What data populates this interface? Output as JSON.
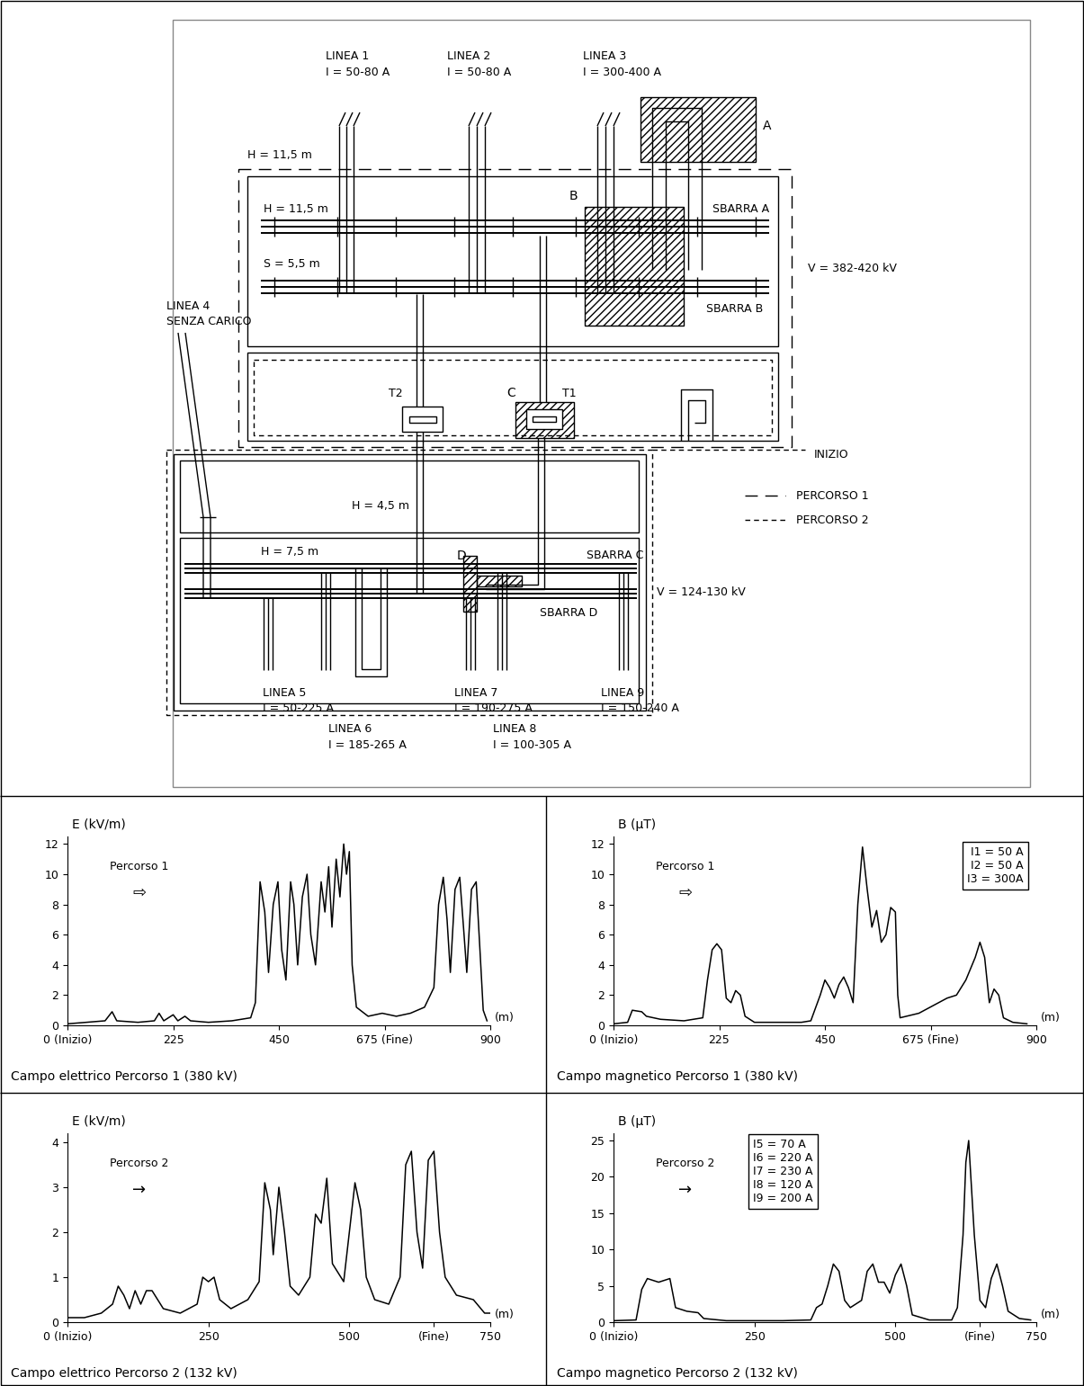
{
  "diagram": {
    "lines": [
      {
        "name": "LINEA 1",
        "current": "I = 50-80 A"
      },
      {
        "name": "LINEA 2",
        "current": "I = 50-80 A"
      },
      {
        "name": "LINEA 3",
        "current": "I = 300-400 A"
      },
      {
        "name": "LINEA 4",
        "current": "SENZA CARICO"
      },
      {
        "name": "LINEA 5",
        "current": "I = 50-225 A"
      },
      {
        "name": "LINEA 6",
        "current": "I = 185-265 A"
      },
      {
        "name": "LINEA 7",
        "current": "I = 190-275 A"
      },
      {
        "name": "LINEA 8",
        "current": "I = 100-305 A"
      },
      {
        "name": "LINEA 9",
        "current": "I = 150-240 A"
      }
    ],
    "heights": [
      "H = 11,5 m",
      "H = 11,5 m",
      "H = 4,5 m",
      "H = 7,5 m"
    ],
    "spacing": "S = 5,5 m",
    "busbars": [
      "SBARRA A",
      "SBARRA B",
      "SBARRA C",
      "SBARRA D"
    ],
    "voltages": [
      "V = 382-420 kV",
      "V = 124-130 kV"
    ],
    "areas": [
      "A",
      "B",
      "C",
      "D"
    ],
    "transformers": [
      "T2",
      "T1"
    ],
    "start": "INIZIO",
    "paths": [
      "PERCORSO 1",
      "PERCORSO 2"
    ]
  },
  "chart_data": [
    {
      "type": "line",
      "title": "Campo elettrico Percorso 1 (380 kV)",
      "y_label": "E (kV/m)",
      "x_label": "(m)",
      "annotations": [
        "Percorso 1",
        "⇨"
      ],
      "x": [
        0,
        40,
        80,
        95,
        105,
        150,
        185,
        195,
        205,
        225,
        235,
        250,
        262,
        300,
        350,
        390,
        400,
        410,
        420,
        428,
        438,
        448,
        456,
        465,
        475,
        482,
        490,
        500,
        510,
        518,
        528,
        540,
        548,
        556,
        563,
        572,
        580,
        588,
        594,
        600,
        606,
        615,
        640,
        670,
        700,
        730,
        760,
        780,
        790,
        800,
        808,
        815,
        825,
        835,
        843,
        850,
        860,
        870,
        878,
        885,
        893
      ],
      "values": [
        0.1,
        0.2,
        0.3,
        0.9,
        0.3,
        0.2,
        0.3,
        0.8,
        0.3,
        0.7,
        0.3,
        0.6,
        0.3,
        0.2,
        0.3,
        0.5,
        1.5,
        9.5,
        7.5,
        3.5,
        8,
        9.5,
        5,
        3,
        9.5,
        8,
        4,
        8.5,
        10,
        6,
        4,
        9.5,
        7.5,
        10.5,
        6.5,
        11,
        8.5,
        12,
        10,
        11.5,
        4,
        1.2,
        0.6,
        0.8,
        0.6,
        0.8,
        1.2,
        2.5,
        8,
        9.8,
        7,
        3.5,
        9,
        9.8,
        6.5,
        3.5,
        9,
        9.5,
        5,
        1,
        0.3
      ],
      "color": "#000000",
      "xlim": [
        0,
        900
      ],
      "ylim": [
        0,
        12.5
      ],
      "xticks": [
        {
          "value": 0,
          "label": "0 (Inizio)"
        },
        225,
        450,
        {
          "value": 675,
          "label": "675 (Fine)"
        },
        900
      ],
      "yticks": [
        0,
        2,
        4,
        6,
        8,
        10,
        12
      ]
    },
    {
      "type": "line",
      "title": "Campo magnetico Percorso 1 (380 kV)",
      "y_label": "B (µT)",
      "x_label": "(m)",
      "annotations": [
        "Percorso 1",
        "⇨"
      ],
      "currents": [
        "I1 = 50 A",
        "I2 = 50 A",
        "I3 = 300A"
      ],
      "x": [
        0,
        30,
        40,
        60,
        70,
        100,
        150,
        190,
        200,
        210,
        220,
        230,
        240,
        250,
        260,
        270,
        280,
        300,
        400,
        420,
        440,
        450,
        460,
        470,
        480,
        490,
        500,
        510,
        520,
        530,
        540,
        550,
        560,
        570,
        580,
        590,
        600,
        605,
        610,
        650,
        680,
        710,
        730,
        750,
        770,
        780,
        790,
        800,
        810,
        820,
        830,
        850,
        880
      ],
      "values": [
        0.1,
        0.2,
        1.0,
        0.9,
        0.6,
        0.4,
        0.3,
        0.5,
        3,
        5,
        5.4,
        5,
        1.8,
        1.5,
        2.3,
        2,
        0.6,
        0.2,
        0.2,
        0.3,
        2,
        3,
        2.5,
        1.8,
        2.7,
        3.2,
        2.5,
        1.5,
        8,
        11.8,
        9,
        6.5,
        7.6,
        5.5,
        6,
        7.8,
        7.5,
        2,
        0.5,
        0.8,
        1.3,
        1.8,
        2,
        3,
        4.5,
        5.5,
        4.5,
        1.5,
        2.4,
        2,
        0.5,
        0.2,
        0.1
      ],
      "color": "#000000",
      "xlim": [
        0,
        900
      ],
      "ylim": [
        0,
        12.5
      ],
      "xticks": [
        {
          "value": 0,
          "label": "0 (Inizio)"
        },
        225,
        450,
        {
          "value": 675,
          "label": "675 (Fine)"
        },
        900
      ],
      "yticks": [
        0,
        2,
        4,
        6,
        8,
        10,
        12
      ]
    },
    {
      "type": "line",
      "title": "Campo elettrico Percorso 2 (132 kV)",
      "y_label": "E (kV/m)",
      "x_label": "(m)",
      "annotations": [
        "Percorso 2",
        "→"
      ],
      "x": [
        0,
        30,
        60,
        80,
        90,
        100,
        110,
        120,
        130,
        140,
        150,
        160,
        170,
        200,
        230,
        240,
        250,
        260,
        270,
        290,
        320,
        340,
        350,
        360,
        365,
        375,
        385,
        395,
        410,
        430,
        440,
        450,
        460,
        470,
        490,
        510,
        520,
        530,
        545,
        570,
        590,
        600,
        610,
        620,
        630,
        640,
        650,
        660,
        670,
        690,
        720,
        740,
        750
      ],
      "values": [
        0.1,
        0.1,
        0.2,
        0.4,
        0.8,
        0.6,
        0.3,
        0.7,
        0.4,
        0.7,
        0.7,
        0.5,
        0.3,
        0.2,
        0.4,
        1.0,
        0.9,
        1.0,
        0.5,
        0.3,
        0.5,
        0.9,
        3.1,
        2.5,
        1.5,
        3.0,
        2.0,
        0.8,
        0.6,
        1.0,
        2.4,
        2.2,
        3.2,
        1.3,
        0.9,
        3.1,
        2.5,
        1.0,
        0.5,
        0.4,
        1.0,
        3.5,
        3.8,
        2.0,
        1.2,
        3.6,
        3.8,
        2.0,
        1.0,
        0.6,
        0.5,
        0.2,
        0.2
      ],
      "color": "#000000",
      "xlim": [
        0,
        750
      ],
      "ylim": [
        0,
        4.2
      ],
      "xticks": [
        {
          "value": 0,
          "label": "0 (Inizio)"
        },
        250,
        500,
        {
          "value": 650,
          "label": "(Fine)"
        },
        750
      ],
      "yticks": [
        0,
        1,
        2,
        3,
        4
      ]
    },
    {
      "type": "line",
      "title": "Campo magnetico Percorso 2 (132 kV)",
      "y_label": "B (µT)",
      "x_label": "(m)",
      "annotations": [
        "Percorso 2",
        "→"
      ],
      "currents": [
        "I5 = 70 A",
        "I6 = 220 A",
        "I7 = 230 A",
        "I8 = 120 A",
        "I9 = 200 A"
      ],
      "x": [
        0,
        40,
        50,
        60,
        80,
        100,
        110,
        130,
        150,
        160,
        200,
        300,
        350,
        360,
        370,
        380,
        390,
        400,
        410,
        420,
        440,
        450,
        460,
        470,
        480,
        490,
        500,
        510,
        520,
        530,
        560,
        600,
        610,
        620,
        625,
        630,
        640,
        650,
        660,
        670,
        680,
        690,
        700,
        720,
        740
      ],
      "values": [
        0.2,
        0.3,
        4.5,
        6,
        5.5,
        6,
        2,
        1.5,
        1.3,
        0.5,
        0.2,
        0.2,
        0.3,
        2,
        2.5,
        5,
        8,
        7,
        3,
        2,
        3,
        7,
        8,
        5.5,
        5.5,
        4,
        6.5,
        8,
        5,
        1,
        0.3,
        0.3,
        2,
        12,
        22,
        25,
        12,
        3,
        2,
        6,
        8,
        5,
        1.5,
        0.5,
        0.3
      ],
      "color": "#000000",
      "xlim": [
        0,
        750
      ],
      "ylim": [
        0,
        26
      ],
      "xticks": [
        {
          "value": 0,
          "label": "0 (Inizio)"
        },
        250,
        500,
        {
          "value": 650,
          "label": "(Fine)"
        },
        750
      ],
      "yticks": [
        0,
        5,
        10,
        15,
        20,
        25
      ]
    }
  ]
}
